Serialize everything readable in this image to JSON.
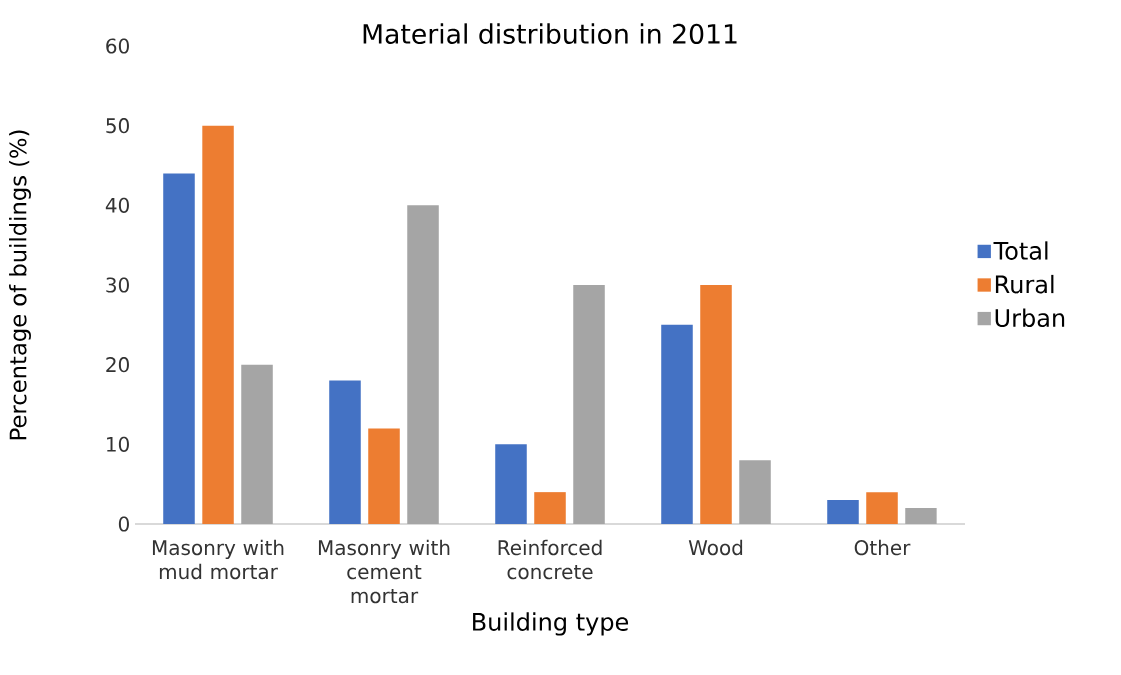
{
  "chart_data": {
    "type": "bar",
    "title": "Material distribution in 2011",
    "xlabel": "Building type",
    "ylabel": "Percentage of buildings (%)",
    "categories": [
      "Masonry with mud mortar",
      "Masonry with cement mortar",
      "Reinforced concrete",
      "Wood",
      "Other"
    ],
    "series": [
      {
        "name": "Total",
        "color": "#4472c4",
        "values": [
          44,
          18,
          10,
          25,
          3
        ]
      },
      {
        "name": "Rural",
        "color": "#ed7d31",
        "values": [
          50,
          12,
          4,
          30,
          4
        ]
      },
      {
        "name": "Urban",
        "color": "#a5a5a5",
        "values": [
          20,
          40,
          30,
          8,
          2
        ]
      }
    ],
    "ylim": [
      0,
      60
    ],
    "yticks": [
      0,
      10,
      20,
      30,
      40,
      50,
      60
    ],
    "grid": false,
    "legend": "right"
  }
}
